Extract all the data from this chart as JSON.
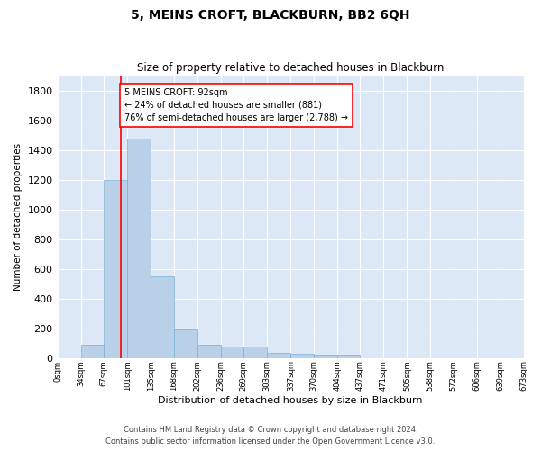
{
  "title": "5, MEINS CROFT, BLACKBURN, BB2 6QH",
  "subtitle": "Size of property relative to detached houses in Blackburn",
  "xlabel": "Distribution of detached houses by size in Blackburn",
  "ylabel": "Number of detached properties",
  "bar_color": "#b8d0e8",
  "bar_edge_color": "#7aafd4",
  "background_color": "#dce8f5",
  "grid_color": "white",
  "property_size": 92,
  "property_line_color": "red",
  "annotation_text": "5 MEINS CROFT: 92sqm\n← 24% of detached houses are smaller (881)\n76% of semi-detached houses are larger (2,788) →",
  "annotation_box_color": "white",
  "annotation_box_edge": "red",
  "bin_edges": [
    0,
    34,
    67,
    101,
    135,
    168,
    202,
    236,
    269,
    303,
    337,
    370,
    404,
    437,
    471,
    505,
    538,
    572,
    606,
    639,
    673
  ],
  "bin_labels": [
    "0sqm",
    "34sqm",
    "67sqm",
    "101sqm",
    "135sqm",
    "168sqm",
    "202sqm",
    "236sqm",
    "269sqm",
    "303sqm",
    "337sqm",
    "370sqm",
    "404sqm",
    "437sqm",
    "471sqm",
    "505sqm",
    "538sqm",
    "572sqm",
    "606sqm",
    "639sqm",
    "673sqm"
  ],
  "counts": [
    0,
    90,
    1200,
    1480,
    550,
    195,
    90,
    75,
    75,
    35,
    30,
    25,
    20,
    0,
    0,
    0,
    0,
    0,
    0,
    0
  ],
  "ylim": [
    0,
    1900
  ],
  "yticks": [
    0,
    200,
    400,
    600,
    800,
    1000,
    1200,
    1400,
    1600,
    1800
  ],
  "footer_line1": "Contains HM Land Registry data © Crown copyright and database right 2024.",
  "footer_line2": "Contains public sector information licensed under the Open Government Licence v3.0."
}
